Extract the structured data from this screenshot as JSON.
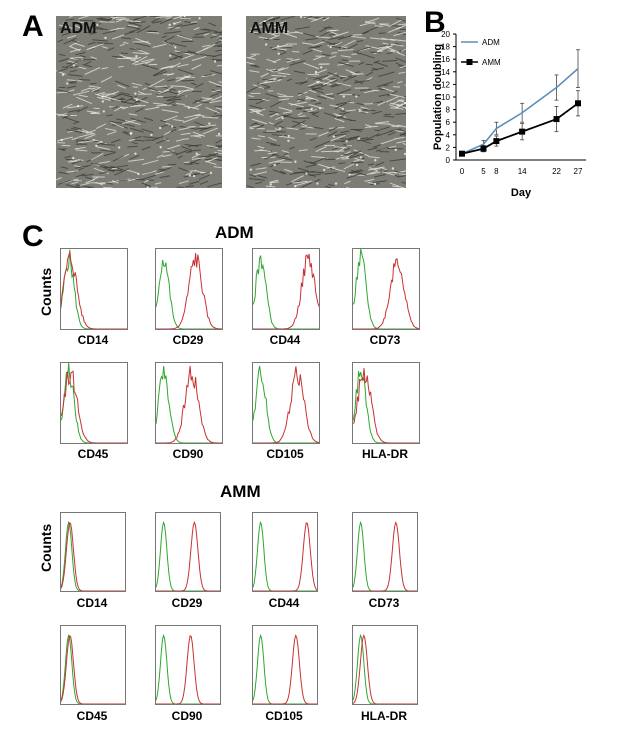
{
  "panels": {
    "a": "A",
    "b": "B",
    "c": "C"
  },
  "micrographs": [
    {
      "label": "ADM"
    },
    {
      "label": "AMM"
    }
  ],
  "chart_data": {
    "type": "line",
    "x": [
      0,
      5,
      8,
      14,
      22,
      27
    ],
    "xticks": [
      "0",
      "5",
      "8",
      "14",
      "22",
      "27"
    ],
    "xlabel": "Day",
    "ylabel": "Population doubling",
    "ylim": [
      0,
      20
    ],
    "yticks": [
      "0",
      "2",
      "4",
      "6",
      "8",
      "10",
      "12",
      "14",
      "16",
      "18",
      "20"
    ],
    "legend_position": "top-left",
    "series": [
      {
        "name": "ADM",
        "color": "#5b8fb9",
        "values": [
          1,
          2.5,
          5,
          7.5,
          11.5,
          14.5
        ],
        "err": [
          0.3,
          0.6,
          1.0,
          1.5,
          2.0,
          3.0
        ]
      },
      {
        "name": "AMM",
        "color": "#000000",
        "values": [
          1,
          1.8,
          3,
          4.5,
          6.5,
          9
        ],
        "err": [
          0.2,
          0.5,
          0.8,
          1.3,
          2.0,
          2.0
        ]
      }
    ]
  },
  "flow": {
    "counts_label": "Counts",
    "groups": [
      {
        "title": "ADM",
        "markers": [
          "CD14",
          "CD29",
          "CD44",
          "CD73",
          "CD45",
          "CD90",
          "CD105",
          "HLA-DR"
        ]
      },
      {
        "title": "AMM",
        "markers": [
          "CD14",
          "CD29",
          "CD44",
          "CD73",
          "CD45",
          "CD90",
          "CD105",
          "HLA-DR"
        ]
      }
    ]
  }
}
